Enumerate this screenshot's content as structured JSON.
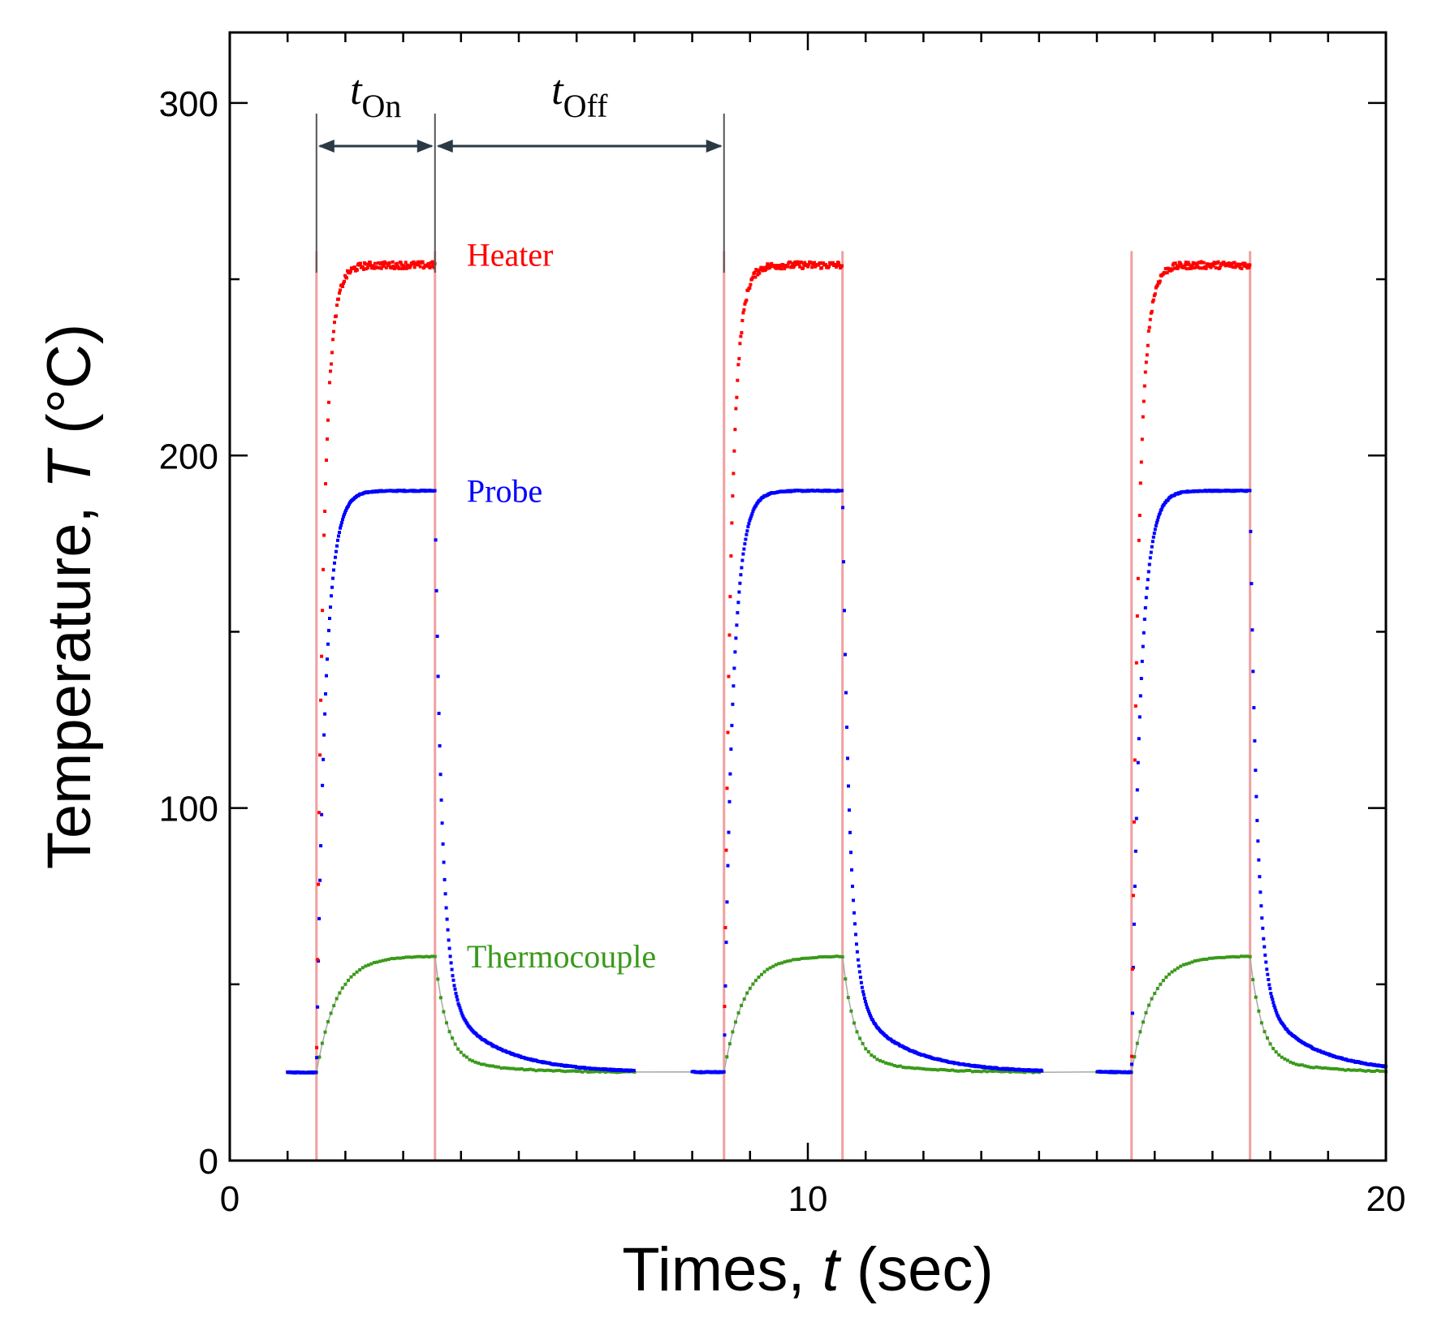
{
  "chart_data": {
    "type": "scatter",
    "title": "",
    "xlabel": {
      "prefix": "Times, ",
      "symbol": "t",
      "suffix": " (sec)"
    },
    "ylabel": {
      "prefix": "Temperature, ",
      "symbol": "T",
      "suffix": " (°C)"
    },
    "xlim": [
      0,
      20
    ],
    "ylim": [
      0,
      320
    ],
    "x_ticks_major": [
      0,
      10,
      20
    ],
    "x_tick_labels": [
      "0",
      "10",
      "20"
    ],
    "x_ticks_minor": [
      1,
      2,
      3,
      4,
      5,
      6,
      7,
      8,
      9,
      11,
      12,
      13,
      14,
      15,
      16,
      17,
      18,
      19
    ],
    "y_ticks_major": [
      0,
      100,
      200,
      300
    ],
    "y_tick_labels": [
      "0",
      "100",
      "200",
      "300"
    ],
    "y_ticks_minor": [
      50,
      150,
      250
    ],
    "grid": false,
    "cycles": [
      {
        "on": 1.5,
        "off": 3.55
      },
      {
        "on": 8.55,
        "off": 10.6
      },
      {
        "on": 15.6,
        "off": 17.65
      }
    ],
    "record_start": 1.0,
    "record_end": 20.0,
    "gaps": [
      [
        7.0,
        8.0
      ],
      [
        14.05,
        15.0
      ]
    ],
    "series": [
      {
        "name": "Heater",
        "label": "Heater",
        "color": "#ff0000",
        "baseline": 25,
        "plateau": 254,
        "tau_rise": 0.12,
        "tau_fall": 0.05,
        "noise": 2.0
      },
      {
        "name": "Probe",
        "label": "Probe",
        "color": "#0000ff",
        "baseline": 25,
        "plateau": 190,
        "tau_rise": 0.15,
        "tau_fall": 0.12,
        "noise": 0.3
      },
      {
        "name": "Thermocouple",
        "label": "Thermocouple",
        "color": "#3a9a1a",
        "baseline": 25,
        "plateau": 58,
        "tau_rise": 0.35,
        "tau_fall": 0.2,
        "noise": 0.2
      }
    ],
    "pulse_line_color": "#f0a0a0",
    "annotations": {
      "t_on": {
        "symbol": "t",
        "sub": "On"
      },
      "t_off": {
        "symbol": "t",
        "sub": "Off"
      },
      "series_labels": [
        {
          "text": "Heater",
          "x": 4.1,
          "y": 257
        },
        {
          "text": "Probe",
          "x": 4.1,
          "y": 190
        },
        {
          "text": "Thermocouple",
          "x": 4.1,
          "y": 58
        }
      ]
    }
  }
}
